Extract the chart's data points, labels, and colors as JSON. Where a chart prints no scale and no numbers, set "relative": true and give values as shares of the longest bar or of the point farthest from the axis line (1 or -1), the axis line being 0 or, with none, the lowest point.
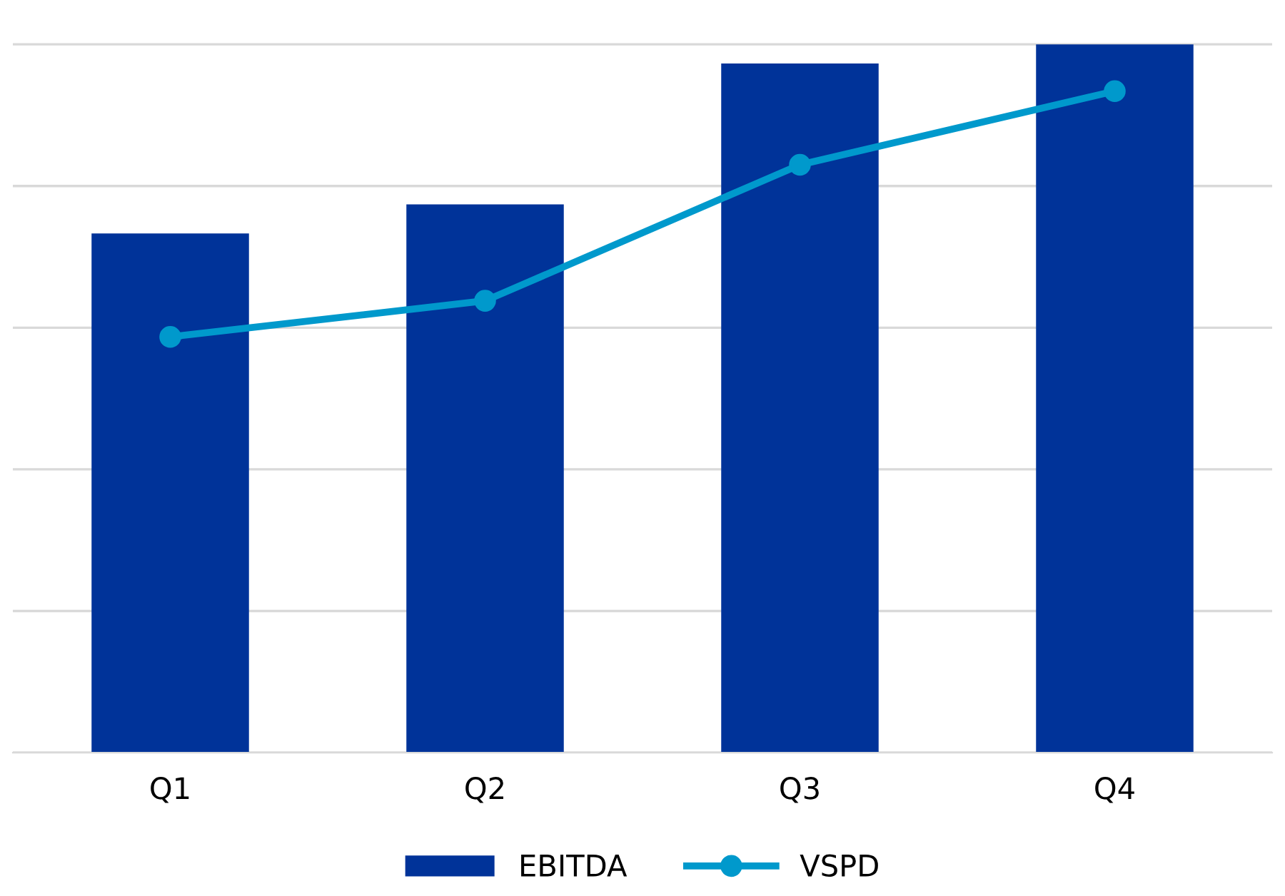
{
  "chart_data": {
    "type": "bar",
    "relative": true,
    "categories": [
      "Q1",
      "Q2",
      "Q3",
      "Q4"
    ],
    "series": [
      {
        "name": "EBITDA",
        "color": "#003399",
        "values": [
          0.733,
          0.774,
          0.973,
          1.0
        ]
      },
      {
        "name": "VSPD",
        "type": "line",
        "color": "#0099cc",
        "values": [
          0.587,
          0.638,
          0.83,
          0.934
        ],
        "marker": "circle"
      }
    ],
    "grid": "y",
    "legend": "bottom"
  }
}
